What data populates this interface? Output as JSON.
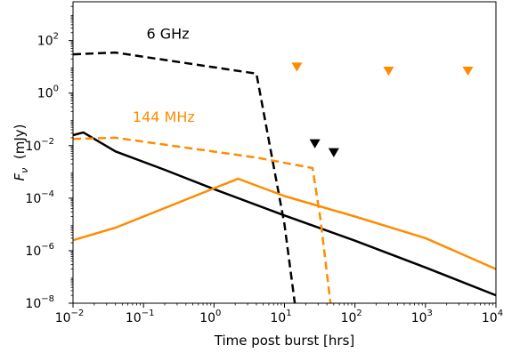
{
  "chart_data": {
    "type": "line",
    "xlabel": "Time post burst [hrs]",
    "ylabel": "F_ν (mJy)",
    "xscale": "log",
    "yscale": "log",
    "xlim": [
      0.01,
      10000
    ],
    "ylim": [
      1e-08,
      3000
    ],
    "legend": "none",
    "grid": false,
    "xticks": [
      {
        "value": 0.01,
        "base": "10",
        "exp": "−2"
      },
      {
        "value": 0.1,
        "base": "10",
        "exp": "−1"
      },
      {
        "value": 1,
        "base": "10",
        "exp": "0"
      },
      {
        "value": 10,
        "base": "10",
        "exp": "1"
      },
      {
        "value": 100,
        "base": "10",
        "exp": "2"
      },
      {
        "value": 1000,
        "base": "10",
        "exp": "3"
      },
      {
        "value": 10000,
        "base": "10",
        "exp": "4"
      }
    ],
    "yticks": [
      {
        "value": 1e-08,
        "base": "10",
        "exp": "−8"
      },
      {
        "value": 1e-06,
        "base": "10",
        "exp": "−6"
      },
      {
        "value": 0.0001,
        "base": "10",
        "exp": "−4"
      },
      {
        "value": 0.01,
        "base": "10",
        "exp": "−2"
      },
      {
        "value": 1,
        "base": "10",
        "exp": "0"
      },
      {
        "value": 100,
        "base": "10",
        "exp": "2"
      }
    ],
    "annotations": [
      {
        "text": "6 GHz",
        "color": "#000000",
        "x": 0.11,
        "y": 120
      },
      {
        "text": "144 MHz",
        "color": "#ff8c00",
        "x": 0.07,
        "y": 0.08
      }
    ],
    "series": [
      {
        "color": "#000000",
        "dash": true,
        "x": [
          0.01,
          0.04,
          4.0,
          10,
          14
        ],
        "y": [
          30,
          35,
          5.5,
          1e-05,
          1e-08
        ]
      },
      {
        "color": "#000000",
        "dash": false,
        "x": [
          0.01,
          0.014,
          0.04,
          0.2,
          1,
          10,
          100,
          1000,
          10000
        ],
        "y": [
          0.025,
          0.032,
          0.006,
          0.0012,
          0.00022,
          2.2e-05,
          2.4e-06,
          2.3e-07,
          2e-08
        ]
      },
      {
        "color": "#ff8c00",
        "dash": true,
        "x": [
          0.01,
          0.04,
          4.0,
          25,
          32,
          45
        ],
        "y": [
          0.018,
          0.02,
          0.0035,
          0.0014,
          2e-05,
          1e-08
        ]
      },
      {
        "color": "#ff8c00",
        "dash": false,
        "x": [
          0.01,
          0.04,
          2.2,
          10,
          100,
          1000,
          10000
        ],
        "y": [
          2.5e-06,
          7.5e-06,
          0.00055,
          0.00012,
          2e-05,
          3e-06,
          2e-07
        ]
      }
    ],
    "upper_limits": [
      {
        "color": "#ff8c00",
        "x": [
          15,
          300,
          4000
        ],
        "y": [
          10,
          7,
          7
        ]
      },
      {
        "color": "#000000",
        "x": [
          27,
          50
        ],
        "y": [
          0.012,
          0.0055
        ]
      }
    ]
  }
}
